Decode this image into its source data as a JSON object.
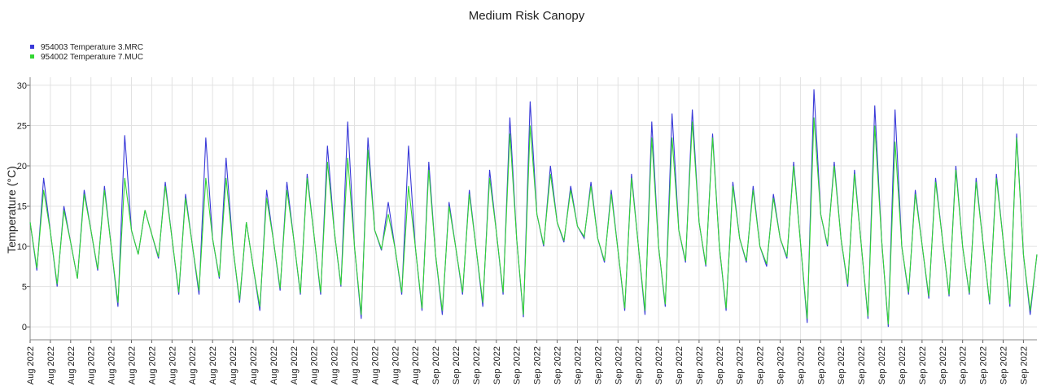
{
  "chart_data": {
    "type": "line",
    "title": "Medium Risk Canopy",
    "y_label": "Temperature (°C)",
    "grid": true,
    "legend": "top-left",
    "ylim": [
      -1.6,
      31
    ],
    "yticks": [
      0,
      5,
      10,
      15,
      20,
      25,
      30
    ],
    "categories": [
      "Aug 2022",
      null,
      null,
      "Aug 2022",
      null,
      null,
      "Aug 2022",
      null,
      null,
      "Aug 2022",
      null,
      null,
      "Aug 2022",
      null,
      null,
      "Aug 2022",
      null,
      null,
      "Aug 2022",
      null,
      null,
      "Aug 2022",
      null,
      null,
      "Aug 2022",
      null,
      null,
      "Aug 2022",
      null,
      null,
      "Aug 2022",
      null,
      null,
      "Aug 2022",
      null,
      null,
      "Aug 2022",
      null,
      null,
      "Aug 2022",
      null,
      null,
      "Aug 2022",
      null,
      null,
      "Aug 2022",
      null,
      null,
      "Aug 2022",
      null,
      null,
      "Aug 2022",
      null,
      null,
      "Aug 2022",
      null,
      null,
      "Aug 2022",
      null,
      null,
      "Sep 2022",
      null,
      null,
      "Sep 2022",
      null,
      null,
      "Sep 2022",
      null,
      null,
      "Sep 2022",
      null,
      null,
      "Sep 2022",
      null,
      null,
      "Sep 2022",
      null,
      null,
      "Sep 2022",
      null,
      null,
      "Sep 2022",
      null,
      null,
      "Sep 2022",
      null,
      null,
      "Sep 2022",
      null,
      null,
      "Sep 2022",
      null,
      null,
      "Sep 2022",
      null,
      null,
      "Sep 2022",
      null,
      null,
      "Sep 2022",
      null,
      null,
      "Sep 2022",
      null,
      null,
      "Sep 2022",
      null,
      null,
      "Sep 2022",
      null,
      null,
      "Sep 2022",
      null,
      null,
      "Sep 2022",
      null,
      null,
      "Sep 2022",
      null,
      null,
      "Sep 2022",
      null,
      null,
      "Sep 2022",
      null,
      null,
      "Sep 2022",
      null,
      null,
      "Sep 2022",
      null,
      null,
      "Sep 2022",
      null,
      null,
      "Sep 2022",
      null,
      null,
      "Sep 2022",
      null,
      null,
      "Sep 2022",
      null,
      null,
      "Sep 2022",
      null,
      null,
      "Sep 2022",
      null,
      null
    ],
    "series": [
      {
        "name": "954003  Temperature 3.MRC",
        "color": "#3a3ad8",
        "values": [
          13,
          7,
          18.5,
          11.8,
          5,
          15,
          10.5,
          6,
          17,
          12,
          7,
          17.5,
          10,
          2.5,
          23.8,
          12,
          9,
          14.5,
          11.5,
          8.5,
          18,
          11,
          4,
          16.5,
          10.2,
          4,
          23.5,
          11,
          6,
          21,
          10,
          3,
          13,
          7.5,
          2,
          17,
          10.8,
          4.5,
          18,
          11,
          4,
          19,
          11.5,
          4,
          22.5,
          12,
          5,
          25.5,
          10,
          1,
          23.5,
          12,
          9.5,
          15.5,
          9.8,
          4,
          22.5,
          10,
          2,
          20.5,
          9,
          1.5,
          15.5,
          9.8,
          4,
          17,
          9.8,
          2.5,
          19.5,
          11.8,
          4,
          26,
          11,
          1.2,
          28,
          14,
          10,
          20,
          13,
          10.5,
          17.5,
          12.5,
          11,
          18,
          11,
          8,
          17,
          9.5,
          2,
          19,
          10.2,
          1.5,
          25.5,
          10,
          2.5,
          26.5,
          12,
          8,
          27,
          13,
          7.5,
          24,
          10,
          2,
          18,
          11,
          8,
          17.5,
          10,
          7.5,
          16.5,
          11,
          8.5,
          20.5,
          10.5,
          0.5,
          29.5,
          14,
          10,
          20.5,
          11,
          5,
          19.5,
          10.2,
          1,
          27.5,
          11,
          0,
          27,
          10,
          4,
          17,
          10.2,
          3.5,
          18.5,
          11,
          3.8,
          20,
          10,
          4,
          18.5,
          10.6,
          2.8,
          19,
          10.8,
          2.5,
          24,
          9,
          1.5,
          9
        ]
      },
      {
        "name": "954002  Temperature 7.MUC",
        "color": "#33d633",
        "values": [
          13,
          7.3,
          17,
          11.8,
          5.3,
          14.5,
          10.5,
          6,
          16.5,
          12,
          7.2,
          17,
          10,
          3,
          18.5,
          12,
          9,
          14.5,
          11.5,
          8.7,
          17.5,
          11,
          4.3,
          16,
          10.2,
          4.5,
          18.5,
          11,
          6.2,
          18.5,
          10,
          3.3,
          13,
          7.5,
          2.5,
          16,
          10.8,
          4.8,
          17,
          11,
          4.2,
          18.5,
          11.5,
          4.3,
          20.5,
          12,
          5.2,
          21,
          10,
          1.5,
          22,
          12,
          9.7,
          14,
          9.8,
          4.3,
          17.5,
          10,
          2.3,
          19.5,
          9,
          2,
          15,
          9.8,
          4.3,
          16.5,
          9.8,
          3,
          18.5,
          11.8,
          4.3,
          24,
          11,
          1.5,
          25,
          14,
          10.2,
          19,
          13,
          10.7,
          17,
          12.5,
          11.2,
          17.5,
          11,
          8.2,
          16.5,
          9.5,
          2.3,
          18.5,
          10.2,
          2,
          23.5,
          10,
          2.8,
          23.5,
          12,
          8.2,
          25.5,
          13,
          7.7,
          23.5,
          10,
          2.3,
          17.5,
          11,
          8.2,
          17,
          10,
          7.8,
          16,
          11,
          8.7,
          20,
          10.5,
          1,
          26,
          14,
          10.2,
          20,
          11,
          5.3,
          19,
          10.2,
          1.3,
          25,
          11,
          0.3,
          23,
          10,
          4.3,
          16.5,
          10.2,
          3.8,
          18,
          11,
          4,
          19.5,
          10,
          4.2,
          18,
          10.6,
          3,
          18.5,
          10.8,
          2.8,
          23.5,
          9,
          2,
          9
        ]
      }
    ]
  }
}
